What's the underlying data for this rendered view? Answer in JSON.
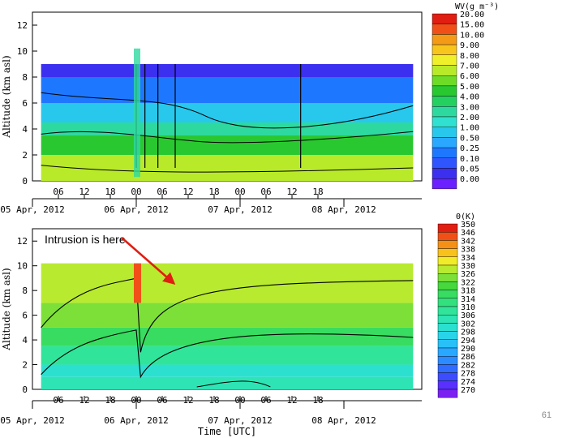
{
  "slide": {
    "number": "61",
    "annotation": "Intrusion is here"
  },
  "chart_data": [
    {
      "type": "heatmap",
      "title": "",
      "ylabel": "Altitude (km asl)",
      "xlabel": "",
      "ylim": [
        0,
        13
      ],
      "yticks": [
        "0",
        "2",
        "4",
        "6",
        "8",
        "10",
        "12"
      ],
      "xlim_hours": [
        0,
        90
      ],
      "xticks": [
        {
          "h": 6,
          "label": "06"
        },
        {
          "h": 12,
          "label": "12"
        },
        {
          "h": 18,
          "label": "18"
        },
        {
          "h": 24,
          "label": "00"
        },
        {
          "h": 30,
          "label": "06"
        },
        {
          "h": 36,
          "label": "12"
        },
        {
          "h": 42,
          "label": "18"
        },
        {
          "h": 48,
          "label": "00"
        },
        {
          "h": 54,
          "label": "06"
        },
        {
          "h": 60,
          "label": "12"
        },
        {
          "h": 66,
          "label": "18"
        }
      ],
      "dates": [
        {
          "h": 0,
          "label": "05 Apr, 2012"
        },
        {
          "h": 24,
          "label": "06 Apr, 2012"
        },
        {
          "h": 48,
          "label": "07 Apr, 2012"
        },
        {
          "h": 72,
          "label": "08 Apr, 2012"
        }
      ],
      "colorbar": {
        "title": "WV(g m⁻³)",
        "levels": [
          "0.00",
          "0.05",
          "0.10",
          "0.25",
          "0.50",
          "1.00",
          "2.00",
          "3.00",
          "4.00",
          "5.00",
          "6.00",
          "7.00",
          "8.00",
          "9.00",
          "10.00",
          "15.00",
          "20.00"
        ],
        "colors": [
          "#8a00e6",
          "#6a20ff",
          "#3b2ff0",
          "#2f55ff",
          "#1e78ff",
          "#2aa8ff",
          "#28c8ec",
          "#30e0d0",
          "#2ed9a0",
          "#24d060",
          "#2ac830",
          "#6edc26",
          "#b9ea2a",
          "#f0f02a",
          "#f7c51c",
          "#f59a16",
          "#f05018",
          "#e01e12"
        ]
      },
      "layers": [
        {
          "top_km": 2,
          "level": "7.00"
        },
        {
          "top_km": 3.5,
          "level": "5.00"
        },
        {
          "top_km": 4.5,
          "level": "3.00"
        },
        {
          "top_km": 6,
          "level": "1.00"
        },
        {
          "top_km": 8,
          "level": "0.25"
        },
        {
          "top_km": 9,
          "level": "0.05"
        }
      ]
    },
    {
      "type": "heatmap",
      "title": "",
      "ylabel": "Altitude (km asl)",
      "xlabel": "Time [UTC]",
      "ylim": [
        0,
        13
      ],
      "yticks": [
        "0",
        "2",
        "4",
        "6",
        "8",
        "10",
        "12"
      ],
      "xlim_hours": [
        0,
        90
      ],
      "xticks": [
        {
          "h": 6,
          "label": "06"
        },
        {
          "h": 12,
          "label": "12"
        },
        {
          "h": 18,
          "label": "18"
        },
        {
          "h": 24,
          "label": "00"
        },
        {
          "h": 30,
          "label": "06"
        },
        {
          "h": 36,
          "label": "12"
        },
        {
          "h": 42,
          "label": "18"
        },
        {
          "h": 48,
          "label": "00"
        },
        {
          "h": 54,
          "label": "06"
        },
        {
          "h": 60,
          "label": "12"
        },
        {
          "h": 66,
          "label": "18"
        }
      ],
      "dates": [
        {
          "h": 0,
          "label": "05 Apr, 2012"
        },
        {
          "h": 24,
          "label": "06 Apr, 2012"
        },
        {
          "h": 48,
          "label": "07 Apr, 2012"
        },
        {
          "h": 72,
          "label": "08 Apr, 2012"
        }
      ],
      "colorbar": {
        "title": "Θ(K)",
        "levels": [
          "270",
          "274",
          "278",
          "282",
          "286",
          "290",
          "294",
          "298",
          "302",
          "306",
          "310",
          "314",
          "318",
          "322",
          "326",
          "330",
          "334",
          "338",
          "342",
          "346",
          "350"
        ],
        "colors": [
          "#9a00e0",
          "#7a20f0",
          "#5a30ff",
          "#3e4cff",
          "#2f6cff",
          "#2a8cff",
          "#28a8ff",
          "#28c0f6",
          "#2ad4e8",
          "#2ce0d0",
          "#2ee4b4",
          "#30e49a",
          "#32e07e",
          "#38dc60",
          "#46d83c",
          "#7ce038",
          "#b8ea30",
          "#f0ec2a",
          "#f7c21c",
          "#f59016",
          "#f05018",
          "#e01e12"
        ]
      },
      "layers": [
        {
          "top_km": 1,
          "level": "306"
        },
        {
          "top_km": 2,
          "level": "302"
        },
        {
          "top_km": 3.5,
          "level": "310"
        },
        {
          "top_km": 5,
          "level": "318"
        },
        {
          "top_km": 7,
          "level": "326"
        },
        {
          "top_km": 10.2,
          "level": "330"
        }
      ]
    }
  ]
}
